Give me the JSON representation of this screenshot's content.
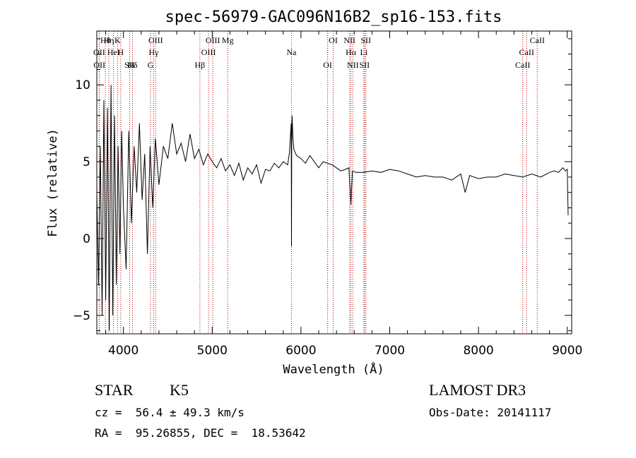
{
  "chart_data": {
    "type": "line",
    "title": "spec-56979-GAC096N16B2_sp16-153.fits",
    "xlabel": "Wavelength (Å)",
    "ylabel": "Flux (relative)",
    "xlim": [
      3700,
      9050
    ],
    "ylim": [
      -6.2,
      13.5
    ],
    "xticks": [
      4000,
      5000,
      6000,
      7000,
      8000,
      9000
    ],
    "xtick_labels": [
      "4000",
      "5000",
      "6000",
      "7000",
      "8000",
      "9000"
    ],
    "yticks": [
      -5,
      0,
      5,
      10
    ],
    "ytick_labels": [
      "−5",
      "0",
      "5",
      "10"
    ],
    "grid": false,
    "series": [
      {
        "name": "flux",
        "x": [
          3700,
          3720,
          3740,
          3760,
          3780,
          3800,
          3820,
          3840,
          3860,
          3880,
          3900,
          3920,
          3940,
          3960,
          3980,
          4000,
          4030,
          4060,
          4090,
          4120,
          4150,
          4180,
          4210,
          4240,
          4270,
          4300,
          4330,
          4360,
          4400,
          4450,
          4500,
          4550,
          4600,
          4650,
          4700,
          4750,
          4800,
          4850,
          4900,
          4950,
          5000,
          5050,
          5100,
          5150,
          5200,
          5250,
          5300,
          5350,
          5400,
          5450,
          5500,
          5550,
          5600,
          5650,
          5700,
          5750,
          5800,
          5850,
          5870,
          5890,
          5893,
          5896,
          5900,
          5910,
          5920,
          5950,
          6000,
          6050,
          6100,
          6150,
          6200,
          6250,
          6300,
          6350,
          6400,
          6450,
          6500,
          6540,
          6563,
          6580,
          6620,
          6700,
          6800,
          6900,
          7000,
          7100,
          7200,
          7300,
          7400,
          7500,
          7600,
          7700,
          7800,
          7850,
          7900,
          8000,
          8100,
          8200,
          8300,
          8400,
          8500,
          8600,
          8700,
          8800,
          8850,
          8900,
          8950,
          8980,
          9000,
          9010
        ],
        "values": [
          3.0,
          -3.0,
          6.0,
          -5.0,
          9.0,
          -4.0,
          8.5,
          -6.0,
          10.0,
          -5.0,
          8.0,
          -3.0,
          6.0,
          -1.0,
          7.0,
          2.0,
          -2.0,
          7.0,
          1.0,
          6.0,
          3.0,
          7.5,
          2.5,
          5.5,
          -1.0,
          6.0,
          2.0,
          6.5,
          3.5,
          6.0,
          5.2,
          7.5,
          5.5,
          6.2,
          5.0,
          6.8,
          5.2,
          5.8,
          4.8,
          5.5,
          5.0,
          4.6,
          5.2,
          4.4,
          4.8,
          4.1,
          4.9,
          3.8,
          4.6,
          4.2,
          4.8,
          3.6,
          4.5,
          4.4,
          4.9,
          4.6,
          5.0,
          4.8,
          5.6,
          7.5,
          -0.5,
          6.0,
          8.0,
          6.5,
          5.8,
          5.4,
          5.2,
          4.9,
          5.4,
          5.0,
          4.6,
          5.0,
          4.9,
          4.8,
          4.6,
          4.4,
          4.5,
          4.6,
          2.2,
          4.4,
          4.3,
          4.3,
          4.4,
          4.3,
          4.5,
          4.4,
          4.2,
          4.0,
          4.1,
          4.0,
          4.0,
          3.8,
          4.2,
          3.0,
          4.1,
          3.9,
          4.0,
          4.0,
          4.2,
          4.1,
          4.0,
          4.2,
          4.0,
          4.3,
          4.4,
          4.3,
          4.6,
          4.4,
          4.5,
          1.5
        ]
      }
    ],
    "annotations": [
      {
        "label": "Hθ",
        "wavelength": 3797
      },
      {
        "label": "OII",
        "wavelength": 3727
      },
      {
        "label": "OII",
        "wavelength": 3729
      },
      {
        "label": "K",
        "wavelength": 3934
      },
      {
        "label": "HeI",
        "wavelength": 3889
      },
      {
        "label": "SII",
        "wavelength": 4070
      },
      {
        "label": "Hη",
        "wavelength": 3835
      },
      {
        "label": "H",
        "wavelength": 3969
      },
      {
        "label": "Hδ",
        "wavelength": 4102
      },
      {
        "label": "OIII",
        "wavelength": 4363
      },
      {
        "label": "Hγ",
        "wavelength": 4341
      },
      {
        "label": "G",
        "wavelength": 4305
      },
      {
        "label": "OIII",
        "wavelength": 5007
      },
      {
        "label": "OIII",
        "wavelength": 4959
      },
      {
        "label": "Hβ",
        "wavelength": 4861
      },
      {
        "label": "Mg",
        "wavelength": 5175
      },
      {
        "label": "Na",
        "wavelength": 5893
      },
      {
        "label": "OI",
        "wavelength": 6300
      },
      {
        "label": "OI",
        "wavelength": 6363
      },
      {
        "label": "Hα",
        "wavelength": 6563
      },
      {
        "label": "SII",
        "wavelength": 6716
      },
      {
        "label": "NII",
        "wavelength": 6548
      },
      {
        "label": "Li",
        "wavelength": 6708
      },
      {
        "label": "NII",
        "wavelength": 6584
      },
      {
        "label": "SII",
        "wavelength": 6731
      },
      {
        "label": "CaII",
        "wavelength": 8542
      },
      {
        "label": "CaII",
        "wavelength": 8498
      },
      {
        "label": "CaII",
        "wavelength": 8662
      }
    ]
  },
  "info": {
    "object_class": "STAR",
    "subclass": "K5",
    "survey": "LAMOST DR3",
    "redshift": "cz =  56.4 ± 49.3 km/s",
    "obs_date": "Obs-Date: 20141117",
    "coordinates": "RA =  95.26855, DEC =  18.53642"
  },
  "colors": {
    "line": "#000000",
    "marker_line": "#c00000",
    "background": "#ffffff"
  }
}
